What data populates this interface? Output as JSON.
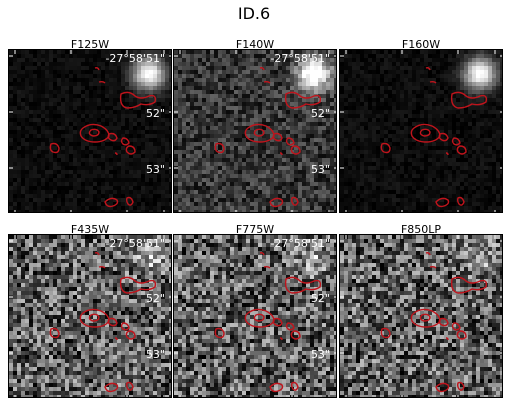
{
  "figure": {
    "title": "ID.6",
    "ra_label": "-27°58'51\"",
    "dec_labels": [
      "52\"",
      "53\""
    ]
  },
  "panels": [
    {
      "filter": "F125W",
      "noise": "low",
      "show_ra": true
    },
    {
      "filter": "F140W",
      "noise": "medium",
      "show_ra": true
    },
    {
      "filter": "F160W",
      "noise": "low",
      "show_ra": false
    },
    {
      "filter": "F435W",
      "noise": "high",
      "show_ra": true
    },
    {
      "filter": "F775W",
      "noise": "high",
      "show_ra": true
    },
    {
      "filter": "F850LP",
      "noise": "high",
      "show_ra": false
    }
  ],
  "colors": {
    "contour": "#c0141c",
    "background": "#000000"
  }
}
